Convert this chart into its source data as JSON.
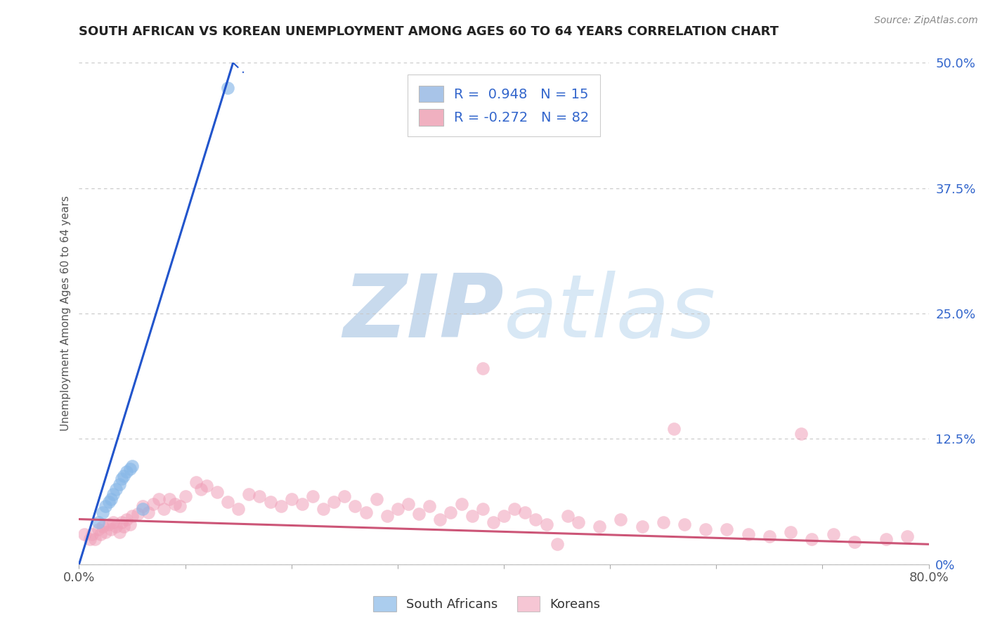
{
  "title": "SOUTH AFRICAN VS KOREAN UNEMPLOYMENT AMONG AGES 60 TO 64 YEARS CORRELATION CHART",
  "source": "Source: ZipAtlas.com",
  "ylabel": "Unemployment Among Ages 60 to 64 years",
  "xlim": [
    0.0,
    0.8
  ],
  "ylim": [
    0.0,
    0.5
  ],
  "ytick_labels_right": [
    "0%",
    "12.5%",
    "25.0%",
    "37.5%",
    "50.0%"
  ],
  "ytick_values_right": [
    0.0,
    0.125,
    0.25,
    0.375,
    0.5
  ],
  "background_color": "#ffffff",
  "grid_color": "#c8c8c8",
  "watermark_ZIP": "ZIP",
  "watermark_atlas": "atlas",
  "watermark_color_bold": "#c8daed",
  "watermark_color_light": "#d8e8f5",
  "legend_R1": "R =  0.948",
  "legend_N1": "N = 15",
  "legend_R2": "R = -0.272",
  "legend_N2": "N = 82",
  "legend_color1": "#a8c4e8",
  "legend_color2": "#f0b0c0",
  "sa_color": "#88b8e8",
  "korean_color": "#f0a0b8",
  "sa_line_color": "#2255cc",
  "korean_line_color": "#cc5577",
  "sa_x": [
    0.018,
    0.022,
    0.025,
    0.028,
    0.03,
    0.032,
    0.035,
    0.038,
    0.04,
    0.042,
    0.045,
    0.048,
    0.05,
    0.14,
    0.06
  ],
  "sa_y": [
    0.042,
    0.052,
    0.058,
    0.062,
    0.065,
    0.07,
    0.075,
    0.08,
    0.085,
    0.088,
    0.092,
    0.095,
    0.098,
    0.475,
    0.055
  ],
  "korean_x": [
    0.005,
    0.01,
    0.012,
    0.015,
    0.018,
    0.02,
    0.022,
    0.025,
    0.028,
    0.03,
    0.032,
    0.035,
    0.038,
    0.04,
    0.042,
    0.045,
    0.048,
    0.05,
    0.055,
    0.06,
    0.065,
    0.07,
    0.075,
    0.08,
    0.085,
    0.09,
    0.095,
    0.1,
    0.11,
    0.115,
    0.12,
    0.13,
    0.14,
    0.15,
    0.16,
    0.17,
    0.18,
    0.19,
    0.2,
    0.21,
    0.22,
    0.23,
    0.24,
    0.25,
    0.26,
    0.27,
    0.28,
    0.29,
    0.3,
    0.31,
    0.32,
    0.33,
    0.34,
    0.35,
    0.36,
    0.37,
    0.38,
    0.39,
    0.4,
    0.41,
    0.42,
    0.43,
    0.44,
    0.45,
    0.46,
    0.47,
    0.49,
    0.51,
    0.53,
    0.55,
    0.57,
    0.59,
    0.61,
    0.63,
    0.65,
    0.67,
    0.69,
    0.71,
    0.73,
    0.76,
    0.78
  ],
  "korean_y": [
    0.03,
    0.025,
    0.03,
    0.025,
    0.035,
    0.03,
    0.038,
    0.032,
    0.04,
    0.035,
    0.042,
    0.038,
    0.032,
    0.042,
    0.038,
    0.045,
    0.04,
    0.048,
    0.05,
    0.058,
    0.052,
    0.06,
    0.065,
    0.055,
    0.065,
    0.06,
    0.058,
    0.068,
    0.082,
    0.075,
    0.078,
    0.072,
    0.062,
    0.055,
    0.07,
    0.068,
    0.062,
    0.058,
    0.065,
    0.06,
    0.068,
    0.055,
    0.062,
    0.068,
    0.058,
    0.052,
    0.065,
    0.048,
    0.055,
    0.06,
    0.05,
    0.058,
    0.045,
    0.052,
    0.06,
    0.048,
    0.055,
    0.042,
    0.048,
    0.055,
    0.052,
    0.045,
    0.04,
    0.02,
    0.048,
    0.042,
    0.038,
    0.045,
    0.038,
    0.042,
    0.04,
    0.035,
    0.035,
    0.03,
    0.028,
    0.032,
    0.025,
    0.03,
    0.022,
    0.025,
    0.028
  ],
  "korean_outlier_x": [
    0.38
  ],
  "korean_outlier_y": [
    0.195
  ],
  "korean_outlier2_x": [
    0.56
  ],
  "korean_outlier2_y": [
    0.135
  ],
  "korean_outlier3_x": [
    0.68
  ],
  "korean_outlier3_y": [
    0.13
  ],
  "sa_line_x0": 0.0,
  "sa_line_y0": 0.0,
  "sa_line_x1": 0.145,
  "sa_line_y1": 0.5,
  "sa_line_dashed_x0": 0.145,
  "sa_line_dashed_y0": 0.5,
  "sa_line_dashed_x1": 0.155,
  "sa_line_dashed_y1": 0.49,
  "korean_line_x0": 0.0,
  "korean_line_y0": 0.045,
  "korean_line_x1": 0.8,
  "korean_line_y1": 0.02
}
